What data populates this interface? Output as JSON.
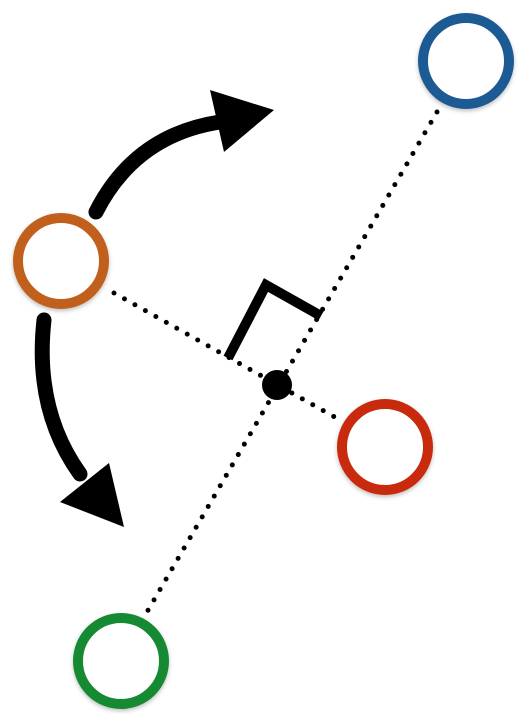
{
  "diagram": {
    "nodes": [
      {
        "id": "blue-node",
        "color": "#1c5a94"
      },
      {
        "id": "orange-node",
        "color": "#c1611a"
      },
      {
        "id": "red-node",
        "color": "#c8290f"
      },
      {
        "id": "green-node",
        "color": "#158a32"
      }
    ],
    "center_point": {
      "color": "#000000"
    },
    "line_style": "dotted",
    "arrows": [
      {
        "direction": "up-right",
        "icon": "curved-arrow-icon"
      },
      {
        "direction": "down",
        "icon": "curved-arrow-icon"
      }
    ],
    "right_angle_marker": {
      "icon": "right-angle-icon"
    }
  }
}
